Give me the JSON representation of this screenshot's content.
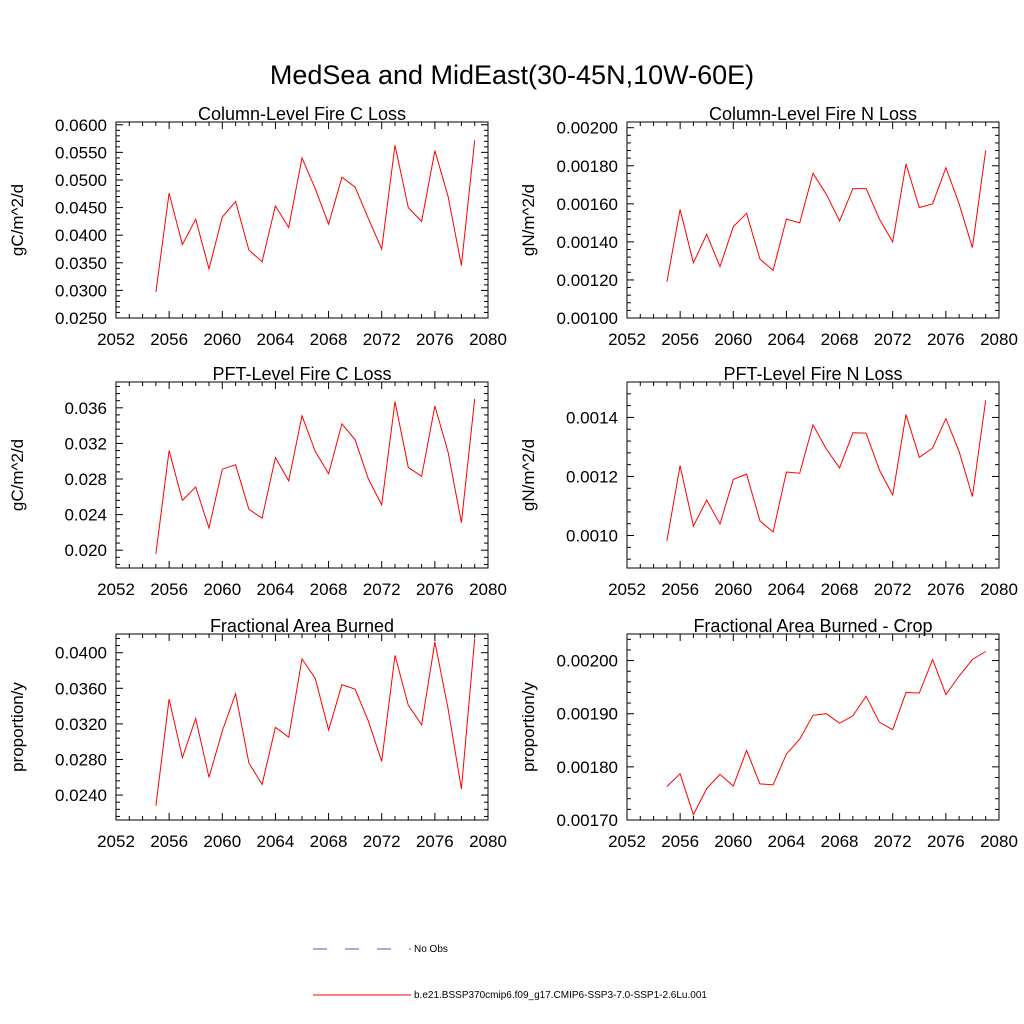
{
  "main_title": "MedSea and MidEast(30-45N,10W-60E)",
  "legend": {
    "entries": [
      {
        "label": "No Obs",
        "color": "#5a5ab4",
        "style": "dashed"
      },
      {
        "label": "b.e21.BSSP370cmip6.f09_g17.CMIP6-SSP3-7.0-SSP1-2.6Lu.001",
        "color": "#ff0000",
        "style": "solid"
      }
    ]
  },
  "chart_data": [
    {
      "type": "line",
      "title": "Column-Level Fire C Loss",
      "ylabel": "gC/m^2/d",
      "xlim": [
        2052,
        2080
      ],
      "ylim": [
        0.025,
        0.0605
      ],
      "xticks": [
        2052,
        2056,
        2060,
        2064,
        2068,
        2072,
        2076,
        2080
      ],
      "xtick_labels": [
        "2052",
        "2056",
        "2060",
        "2064",
        "2068",
        "2072",
        "2076",
        "2080"
      ],
      "yticks": [
        0.025,
        0.03,
        0.035,
        0.04,
        0.045,
        0.05,
        0.055,
        0.06
      ],
      "ytick_labels": [
        "0.0250",
        "0.0300",
        "0.0350",
        "0.0400",
        "0.0450",
        "0.0500",
        "0.0550",
        "0.0600"
      ],
      "color": "#ff0000",
      "series": [
        {
          "x": [
            2055,
            2056,
            2057,
            2058,
            2059,
            2060,
            2061,
            2062,
            2063,
            2064,
            2065,
            2066,
            2067,
            2068,
            2069,
            2070,
            2071,
            2072,
            2073,
            2074,
            2075,
            2076,
            2077,
            2078,
            2079
          ],
          "values": [
            0.0297,
            0.0476,
            0.0383,
            0.0429,
            0.0339,
            0.0433,
            0.0461,
            0.0373,
            0.0352,
            0.0453,
            0.0414,
            0.054,
            0.0484,
            0.042,
            0.0505,
            0.0487,
            0.043,
            0.0375,
            0.0563,
            0.045,
            0.0425,
            0.0553,
            0.047,
            0.0345,
            0.0572
          ]
        }
      ]
    },
    {
      "type": "line",
      "title": "Column-Level Fire N Loss",
      "ylabel": "gN/m^2/d",
      "xlim": [
        2052,
        2080
      ],
      "ylim": [
        0.001,
        0.00203
      ],
      "xticks": [
        2052,
        2056,
        2060,
        2064,
        2068,
        2072,
        2076,
        2080
      ],
      "xtick_labels": [
        "2052",
        "2056",
        "2060",
        "2064",
        "2068",
        "2072",
        "2076",
        "2080"
      ],
      "yticks": [
        0.001,
        0.0012,
        0.0014,
        0.0016,
        0.0018,
        0.002
      ],
      "ytick_labels": [
        "0.00100",
        "0.00120",
        "0.00140",
        "0.00160",
        "0.00180",
        "0.00200"
      ],
      "color": "#ff0000",
      "series": [
        {
          "x": [
            2055,
            2056,
            2057,
            2058,
            2059,
            2060,
            2061,
            2062,
            2063,
            2064,
            2065,
            2066,
            2067,
            2068,
            2069,
            2070,
            2071,
            2072,
            2073,
            2074,
            2075,
            2076,
            2077,
            2078,
            2079
          ],
          "values": [
            0.00119,
            0.00157,
            0.00129,
            0.00144,
            0.00127,
            0.00148,
            0.00155,
            0.00131,
            0.00125,
            0.00152,
            0.0015,
            0.00176,
            0.00165,
            0.00151,
            0.00168,
            0.00168,
            0.00152,
            0.0014,
            0.00181,
            0.00158,
            0.0016,
            0.00179,
            0.0016,
            0.00137,
            0.00188
          ]
        }
      ]
    },
    {
      "type": "line",
      "title": "PFT-Level Fire C Loss",
      "ylabel": "gC/m^2/d",
      "xlim": [
        2052,
        2080
      ],
      "ylim": [
        0.018,
        0.0389
      ],
      "xticks": [
        2052,
        2056,
        2060,
        2064,
        2068,
        2072,
        2076,
        2080
      ],
      "xtick_labels": [
        "2052",
        "2056",
        "2060",
        "2064",
        "2068",
        "2072",
        "2076",
        "2080"
      ],
      "yticks": [
        0.02,
        0.024,
        0.028,
        0.032,
        0.036
      ],
      "ytick_labels": [
        "0.020",
        "0.024",
        "0.028",
        "0.032",
        "0.036"
      ],
      "color": "#ff0000",
      "series": [
        {
          "x": [
            2055,
            2056,
            2057,
            2058,
            2059,
            2060,
            2061,
            2062,
            2063,
            2064,
            2065,
            2066,
            2067,
            2068,
            2069,
            2070,
            2071,
            2072,
            2073,
            2074,
            2075,
            2076,
            2077,
            2078,
            2079
          ],
          "values": [
            0.0196,
            0.0312,
            0.0256,
            0.0271,
            0.0225,
            0.0291,
            0.0296,
            0.0246,
            0.0236,
            0.0304,
            0.0278,
            0.0351,
            0.0311,
            0.0286,
            0.0342,
            0.0324,
            0.028,
            0.0251,
            0.0367,
            0.0293,
            0.0283,
            0.0362,
            0.031,
            0.0231,
            0.037
          ]
        }
      ]
    },
    {
      "type": "line",
      "title": "PFT-Level Fire N Loss",
      "ylabel": "gN/m^2/d",
      "xlim": [
        2052,
        2080
      ],
      "ylim": [
        0.00089,
        0.00152
      ],
      "xticks": [
        2052,
        2056,
        2060,
        2064,
        2068,
        2072,
        2076,
        2080
      ],
      "xtick_labels": [
        "2052",
        "2056",
        "2060",
        "2064",
        "2068",
        "2072",
        "2076",
        "2080"
      ],
      "yticks": [
        0.001,
        0.0012,
        0.0014
      ],
      "ytick_labels": [
        "0.0010",
        "0.0012",
        "0.0014"
      ],
      "color": "#ff0000",
      "series": [
        {
          "x": [
            2055,
            2056,
            2057,
            2058,
            2059,
            2060,
            2061,
            2062,
            2063,
            2064,
            2065,
            2066,
            2067,
            2068,
            2069,
            2070,
            2071,
            2072,
            2073,
            2074,
            2075,
            2076,
            2077,
            2078,
            2079
          ],
          "values": [
            0.000982,
            0.001237,
            0.001032,
            0.00112,
            0.001039,
            0.00119,
            0.001208,
            0.00105,
            0.001012,
            0.001215,
            0.001211,
            0.001375,
            0.001293,
            0.001229,
            0.001348,
            0.001347,
            0.001222,
            0.001137,
            0.00141,
            0.001265,
            0.001296,
            0.001396,
            0.001285,
            0.001132,
            0.001458
          ]
        }
      ]
    },
    {
      "type": "line",
      "title": "Fractional Area Burned",
      "ylabel": "proportion/y",
      "xlim": [
        2052,
        2080
      ],
      "ylim": [
        0.0212,
        0.0421
      ],
      "xticks": [
        2052,
        2056,
        2060,
        2064,
        2068,
        2072,
        2076,
        2080
      ],
      "xtick_labels": [
        "2052",
        "2056",
        "2060",
        "2064",
        "2068",
        "2072",
        "2076",
        "2080"
      ],
      "yticks": [
        0.024,
        0.028,
        0.032,
        0.036,
        0.04
      ],
      "ytick_labels": [
        "0.0240",
        "0.0280",
        "0.0320",
        "0.0360",
        "0.0400"
      ],
      "color": "#ff0000",
      "series": [
        {
          "x": [
            2055,
            2056,
            2057,
            2058,
            2059,
            2060,
            2061,
            2062,
            2063,
            2064,
            2065,
            2066,
            2067,
            2068,
            2069,
            2070,
            2071,
            2072,
            2073,
            2074,
            2075,
            2076,
            2077,
            2078,
            2079
          ],
          "values": [
            0.0228,
            0.0348,
            0.0282,
            0.0326,
            0.026,
            0.0312,
            0.0354,
            0.0276,
            0.0252,
            0.0316,
            0.0305,
            0.0393,
            0.0371,
            0.0313,
            0.0364,
            0.0359,
            0.0323,
            0.0278,
            0.0397,
            0.0341,
            0.0319,
            0.0412,
            0.0337,
            0.0247,
            0.0416
          ]
        }
      ]
    },
    {
      "type": "line",
      "title": "Fractional Area Burned - Crop",
      "ylabel": "proportion/y",
      "xlim": [
        2052,
        2080
      ],
      "ylim": [
        0.0017,
        0.00205
      ],
      "xticks": [
        2052,
        2056,
        2060,
        2064,
        2068,
        2072,
        2076,
        2080
      ],
      "xtick_labels": [
        "2052",
        "2056",
        "2060",
        "2064",
        "2068",
        "2072",
        "2076",
        "2080"
      ],
      "yticks": [
        0.0017,
        0.0018,
        0.0019,
        0.002
      ],
      "ytick_labels": [
        "0.00170",
        "0.00180",
        "0.00190",
        "0.00200"
      ],
      "color": "#ff0000",
      "series": [
        {
          "x": [
            2055,
            2056,
            2057,
            2058,
            2059,
            2060,
            2061,
            2062,
            2063,
            2064,
            2065,
            2066,
            2067,
            2068,
            2069,
            2070,
            2071,
            2072,
            2073,
            2074,
            2075,
            2076,
            2077,
            2078,
            2079
          ],
          "values": [
            0.001763,
            0.001787,
            0.00171,
            0.001759,
            0.001786,
            0.001764,
            0.001831,
            0.001768,
            0.001766,
            0.001824,
            0.001852,
            0.001897,
            0.0019,
            0.001882,
            0.001896,
            0.001933,
            0.001884,
            0.00187,
            0.00194,
            0.001939,
            0.002002,
            0.001936,
            0.001971,
            0.002002,
            0.002017
          ]
        }
      ]
    }
  ]
}
